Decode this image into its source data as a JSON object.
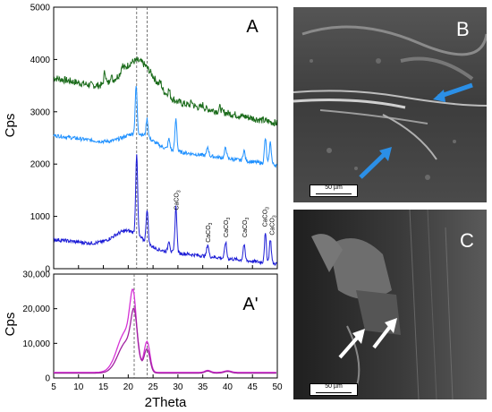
{
  "chart_data": [
    {
      "type": "line",
      "panel": "A",
      "ylabel": "Cps",
      "xlim": [
        5,
        50
      ],
      "ylim": [
        0,
        5000
      ],
      "yticks": [
        0,
        1000,
        2000,
        3000,
        4000,
        5000
      ],
      "reference_lines_x": [
        21.7,
        23.8
      ],
      "series": [
        {
          "color": "#1a6b1a",
          "baseline": 3650,
          "broad_hump": {
            "center": 22,
            "height": 650,
            "width": 4.5
          },
          "peaks": [
            [
              15.3,
              250
            ],
            [
              16.5,
              120
            ],
            [
              18.8,
              120
            ],
            [
              26.5,
              100
            ],
            [
              28.2,
              120
            ],
            [
              32.8,
              80
            ],
            [
              35.0,
              60
            ],
            [
              38.5,
              80
            ]
          ],
          "end_value": 2780,
          "noise": 70
        },
        {
          "color": "#1e90ff",
          "baseline": 2550,
          "broad_hump": {
            "center": 22,
            "height": 250,
            "width": 4
          },
          "peaks": [
            [
              21.6,
              900
            ],
            [
              23.8,
              350
            ],
            [
              28.2,
              200
            ],
            [
              29.6,
              620
            ],
            [
              36.0,
              170
            ],
            [
              39.6,
              210
            ],
            [
              43.3,
              200
            ],
            [
              47.6,
              480
            ],
            [
              48.6,
              420
            ]
          ],
          "end_value": 1980,
          "noise": 35
        },
        {
          "color": "#1c1cd6",
          "baseline": 560,
          "broad_hump": {
            "center": 20,
            "height": 320,
            "width": 4
          },
          "peaks": [
            [
              21.7,
              1550
            ],
            [
              23.8,
              650
            ],
            [
              28.2,
              220
            ],
            [
              29.6,
              880
            ],
            [
              36.0,
              230
            ],
            [
              39.6,
              310
            ],
            [
              43.3,
              300
            ],
            [
              47.6,
              550
            ],
            [
              48.6,
              460
            ]
          ],
          "end_value": 90,
          "noise": 35
        }
      ],
      "annotations": [
        {
          "text": "CaCO3",
          "x": 29.6,
          "y": 1120
        },
        {
          "text": "CaCO3",
          "x": 36.0,
          "y": 500
        },
        {
          "text": "CaCO3",
          "x": 39.6,
          "y": 600
        },
        {
          "text": "CaCO3",
          "x": 43.3,
          "y": 600
        },
        {
          "text": "CaCO3",
          "x": 47.4,
          "y": 800
        },
        {
          "text": "CaCO3",
          "x": 48.8,
          "y": 640
        }
      ],
      "label": "A"
    },
    {
      "type": "line",
      "panel": "A'",
      "xlabel": "2Theta",
      "ylabel": "Cps",
      "xlim": [
        5,
        50
      ],
      "ylim": [
        0,
        30000
      ],
      "xticks": [
        5,
        10,
        15,
        20,
        25,
        30,
        35,
        40,
        45,
        50
      ],
      "yticks": [
        0,
        10000,
        20000,
        30000
      ],
      "ytick_labels": [
        "0",
        "10,000",
        "20,000",
        "30,000"
      ],
      "reference_lines_x": [
        21.2,
        23.8
      ],
      "series": [
        {
          "color": "#d633d6",
          "peak_value": 27500,
          "peak_x": 21.0,
          "shoulder_x": 23.8,
          "shoulder_value": 8500,
          "baseline": 1600
        },
        {
          "color": "#a020a0",
          "peak_value": 21500,
          "peak_x": 21.2,
          "shoulder_x": 23.8,
          "shoulder_value": 6500,
          "baseline": 1400
        }
      ],
      "label": "A'"
    }
  ],
  "images": {
    "B": {
      "label": "B",
      "scale_bar": "50 µm"
    },
    "C": {
      "label": "C",
      "scale_bar": "50 µm"
    }
  },
  "colors": {
    "arrow_b": "#2b8fe6",
    "arrow_c": "#ffffff"
  }
}
